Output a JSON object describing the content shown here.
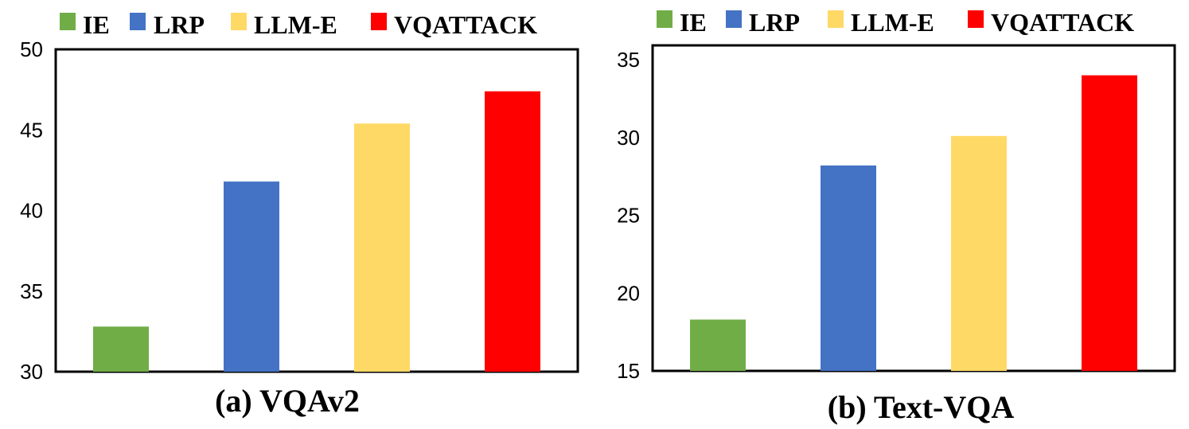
{
  "legend": {
    "items": [
      {
        "label": "IE",
        "color": "#70AD47"
      },
      {
        "label": "LRP",
        "color": "#4472C4"
      },
      {
        "label": "LLM-E",
        "color": "#FFD966"
      },
      {
        "label": "VQATTACK",
        "color": "#FF0000"
      }
    ]
  },
  "chart_data": [
    {
      "type": "bar",
      "caption": "(a) VQAv2",
      "categories": [
        "IE",
        "LRP",
        "LLM-E",
        "VQATTACK"
      ],
      "values": [
        32.8,
        41.8,
        45.4,
        47.4
      ],
      "colors": [
        "#70AD47",
        "#4472C4",
        "#FFD966",
        "#FF0000"
      ],
      "ylim": [
        30,
        50
      ],
      "yticks": [
        30,
        35,
        40,
        45,
        50
      ],
      "grid": false,
      "legend_position": "top"
    },
    {
      "type": "bar",
      "caption": "(b) Text-VQA",
      "categories": [
        "IE",
        "LRP",
        "LLM-E",
        "VQATTACK"
      ],
      "values": [
        18.3,
        28.2,
        30.1,
        34.0
      ],
      "colors": [
        "#70AD47",
        "#4472C4",
        "#FFD966",
        "#FF0000"
      ],
      "ylim": [
        15,
        35
      ],
      "yticks": [
        15,
        20,
        25,
        30,
        35
      ],
      "grid": false,
      "legend_position": "top"
    }
  ]
}
